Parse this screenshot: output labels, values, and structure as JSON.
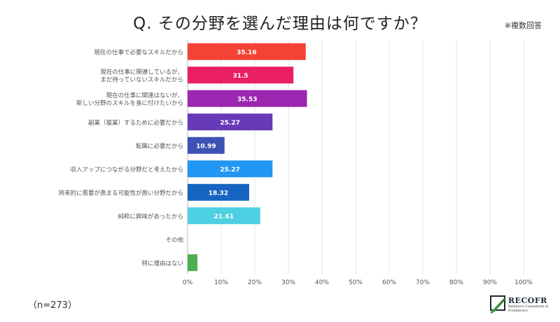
{
  "title": "Q. その分野を選んだ理由は何ですか？",
  "note": "※複数回答",
  "sample_size": "（n=273）",
  "logo": {
    "name": "RECOFR",
    "tagline": "Reinforce Consultants & Freelancers",
    "color": "#2e7d32"
  },
  "chart_data": {
    "type": "bar",
    "orientation": "horizontal",
    "categories": [
      [
        "現在の仕事で必要なスキルだから"
      ],
      [
        "現在の仕事に関連しているが、",
        "まだ持っていないスキルだから"
      ],
      [
        "現在の仕事に関連はないが、",
        "新しい分野のスキルを身に付けたいから"
      ],
      [
        "副業（複業）するために必要だから"
      ],
      [
        "転職に必要だから"
      ],
      [
        "収入アップにつながる分野だと考えたから"
      ],
      [
        "将来的に需要が高まる可能性が高い分野だから"
      ],
      [
        "純粋に興味があったから"
      ],
      [
        "その他"
      ],
      [
        "特に理由はない"
      ]
    ],
    "values": [
      35.16,
      31.5,
      35.53,
      25.27,
      10.99,
      25.27,
      18.32,
      21.61,
      0,
      2.93
    ],
    "data_labels": [
      "35.16",
      "31.5",
      "35.53",
      "25.27",
      "10.99",
      "25.27",
      "18.32",
      "21.61",
      "",
      ""
    ],
    "colors": [
      "#f44336",
      "#e91e63",
      "#9c27b0",
      "#673ab7",
      "#3f51b5",
      "#2196f3",
      "#1565c0",
      "#4dd0e1",
      "#9e9e9e",
      "#4caf50"
    ],
    "xlim": [
      0,
      100
    ],
    "x_ticks": [
      "0%",
      "10%",
      "20%",
      "30%",
      "40%",
      "50%",
      "60%",
      "70%",
      "80%",
      "90%",
      "100%"
    ],
    "grid": true
  }
}
